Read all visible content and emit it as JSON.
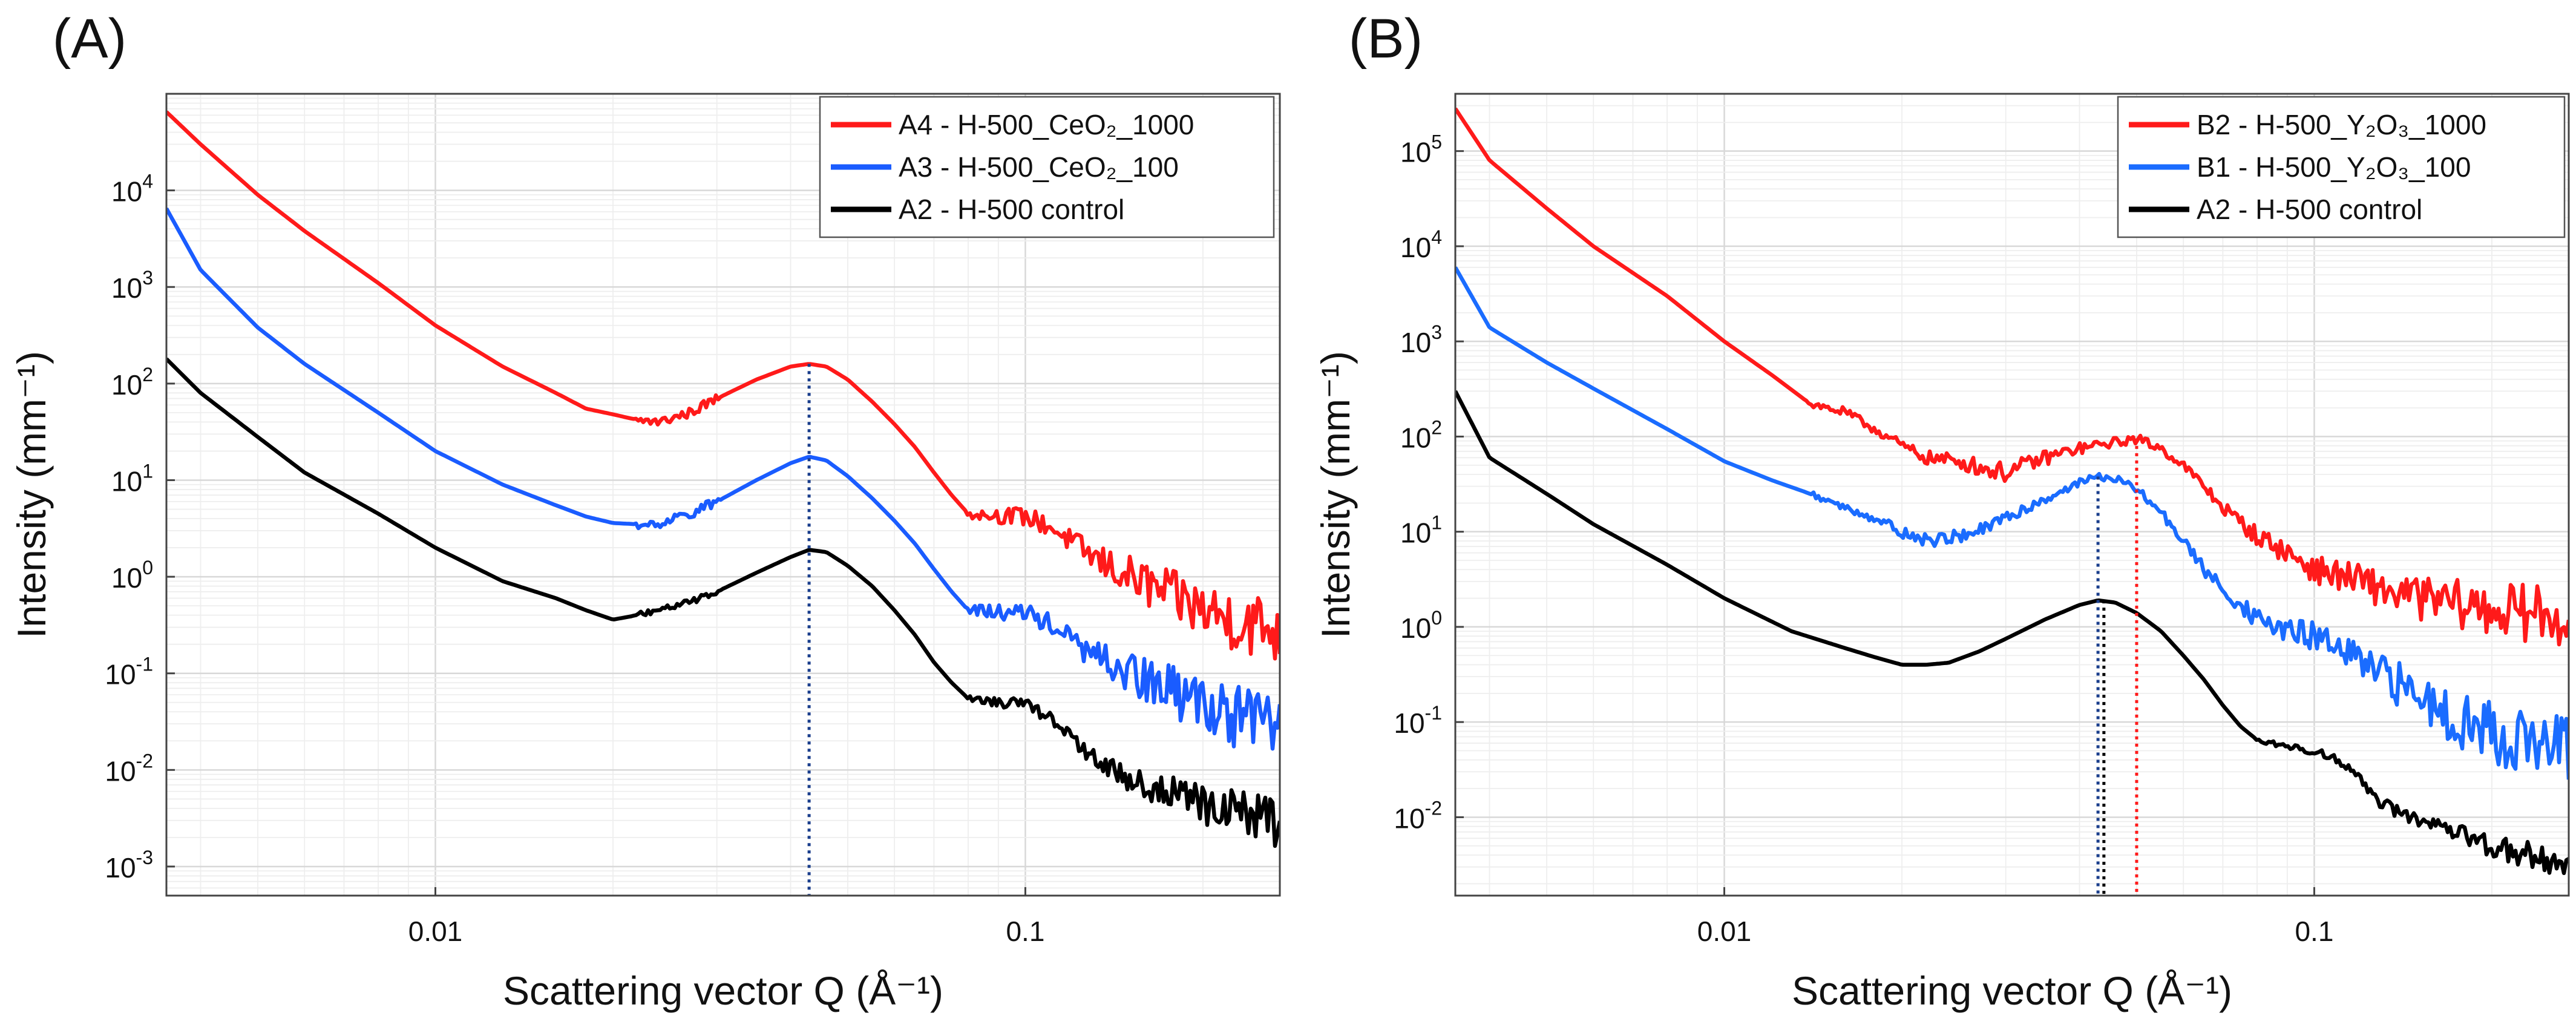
{
  "chart_data": [
    {
      "type": "line",
      "panel_label": "(A)",
      "title": "",
      "xlabel": "Scattering vector Q (Å⁻¹)",
      "ylabel": "Intensity (mm⁻¹)",
      "xscale": "log",
      "yscale": "log",
      "xlim": [
        0.0035,
        0.27
      ],
      "ylim": [
        0.0005,
        100000
      ],
      "xticks": [
        {
          "value": 0.01,
          "label": "0.01"
        },
        {
          "value": 0.1,
          "label": "0.1"
        }
      ],
      "yticks": [
        {
          "value": 0.001,
          "base": "10",
          "exp": "-3"
        },
        {
          "value": 0.01,
          "base": "10",
          "exp": "-2"
        },
        {
          "value": 0.1,
          "base": "10",
          "exp": "-1"
        },
        {
          "value": 1,
          "base": "10",
          "exp": "0"
        },
        {
          "value": 10,
          "base": "10",
          "exp": "1"
        },
        {
          "value": 100,
          "base": "10",
          "exp": "2"
        },
        {
          "value": 1000,
          "base": "10",
          "exp": "3"
        },
        {
          "value": 10000,
          "base": "10",
          "exp": "4"
        }
      ],
      "grid": true,
      "legend_position": "top-right",
      "series": [
        {
          "name": "A4 - H-500_CeO₂_1000",
          "color": "#ff1a1a",
          "x": [
            0.0035,
            0.004,
            0.005,
            0.006,
            0.008,
            0.01,
            0.013,
            0.016,
            0.018,
            0.02,
            0.022,
            0.024,
            0.027,
            0.03,
            0.035,
            0.04,
            0.043,
            0.046,
            0.05,
            0.055,
            0.06,
            0.065,
            0.07,
            0.075,
            0.08,
            0.09,
            0.1,
            0.11,
            0.12,
            0.13,
            0.15,
            0.17,
            0.2,
            0.23,
            0.27
          ],
          "y": [
            65000,
            30000,
            9000,
            3800,
            1100,
            400,
            150,
            80,
            55,
            48,
            42,
            40,
            50,
            70,
            110,
            150,
            160,
            150,
            110,
            65,
            38,
            22,
            12,
            7,
            4.5,
            4.3,
            4.2,
            3.3,
            2.3,
            1.6,
            1.0,
            0.7,
            0.45,
            0.35,
            0.28
          ],
          "noise": [
            0,
            0,
            0,
            0,
            0,
            0,
            0,
            0,
            0,
            0,
            0.05,
            0.05,
            0.05,
            0.05,
            0,
            0,
            0,
            0,
            0,
            0,
            0,
            0,
            0,
            0,
            0.05,
            0.08,
            0.1,
            0.1,
            0.12,
            0.16,
            0.22,
            0.26,
            0.3,
            0.33,
            0.36
          ]
        },
        {
          "name": "A3 - H-500_CeO₂_100",
          "color": "#1a5cff",
          "x": [
            0.0035,
            0.004,
            0.005,
            0.006,
            0.008,
            0.01,
            0.013,
            0.016,
            0.018,
            0.02,
            0.022,
            0.024,
            0.027,
            0.03,
            0.035,
            0.04,
            0.043,
            0.046,
            0.05,
            0.055,
            0.06,
            0.065,
            0.07,
            0.075,
            0.08,
            0.09,
            0.1,
            0.11,
            0.12,
            0.13,
            0.15,
            0.17,
            0.2,
            0.23,
            0.27
          ],
          "y": [
            6500,
            1500,
            380,
            160,
            50,
            20,
            9,
            5.5,
            4.2,
            3.6,
            3.5,
            3.6,
            4.5,
            6,
            10,
            15,
            17.5,
            16,
            11,
            6.5,
            3.8,
            2.2,
            1.2,
            0.7,
            0.45,
            0.43,
            0.42,
            0.33,
            0.22,
            0.15,
            0.1,
            0.07,
            0.05,
            0.035,
            0.028
          ],
          "noise": [
            0,
            0,
            0,
            0,
            0,
            0,
            0,
            0,
            0,
            0,
            0.05,
            0.05,
            0.05,
            0.05,
            0,
            0,
            0,
            0,
            0,
            0,
            0,
            0,
            0,
            0,
            0.05,
            0.08,
            0.1,
            0.1,
            0.12,
            0.16,
            0.22,
            0.26,
            0.3,
            0.33,
            0.36
          ]
        },
        {
          "name": "A2 - H-500 control",
          "color": "#000000",
          "x": [
            0.0035,
            0.004,
            0.005,
            0.006,
            0.008,
            0.01,
            0.013,
            0.016,
            0.018,
            0.02,
            0.022,
            0.024,
            0.027,
            0.03,
            0.035,
            0.04,
            0.043,
            0.046,
            0.05,
            0.055,
            0.06,
            0.065,
            0.07,
            0.075,
            0.08,
            0.09,
            0.1,
            0.11,
            0.12,
            0.13,
            0.15,
            0.17,
            0.2,
            0.23,
            0.27
          ],
          "y": [
            180,
            80,
            28,
            12,
            4.5,
            2.0,
            0.9,
            0.6,
            0.45,
            0.36,
            0.4,
            0.45,
            0.55,
            0.7,
            1.1,
            1.6,
            1.9,
            1.8,
            1.3,
            0.8,
            0.45,
            0.25,
            0.13,
            0.08,
            0.055,
            0.05,
            0.048,
            0.035,
            0.022,
            0.013,
            0.008,
            0.006,
            0.0045,
            0.0035,
            0.003
          ],
          "noise": [
            0,
            0,
            0,
            0,
            0,
            0,
            0,
            0,
            0,
            0,
            0.03,
            0.03,
            0.03,
            0.03,
            0,
            0,
            0,
            0,
            0,
            0,
            0,
            0,
            0,
            0,
            0.03,
            0.05,
            0.06,
            0.06,
            0.08,
            0.1,
            0.14,
            0.18,
            0.22,
            0.25,
            0.28
          ]
        }
      ],
      "reference_lines": [
        {
          "x": 0.043,
          "color": "#1a3e8c",
          "from": 1.9,
          "to": 160,
          "to_axis_bottom": true
        }
      ]
    },
    {
      "type": "line",
      "panel_label": "(B)",
      "title": "",
      "xlabel": "Scattering vector Q (Å⁻¹)",
      "ylabel": "Intensity (mm⁻¹)",
      "xscale": "log",
      "yscale": "log",
      "xlim": [
        0.0035,
        0.27
      ],
      "ylim": [
        0.0015,
        400000
      ],
      "xticks": [
        {
          "value": 0.01,
          "label": "0.01"
        },
        {
          "value": 0.1,
          "label": "0.1"
        }
      ],
      "yticks": [
        {
          "value": 0.01,
          "base": "10",
          "exp": "-2"
        },
        {
          "value": 0.1,
          "base": "10",
          "exp": "-1"
        },
        {
          "value": 1,
          "base": "10",
          "exp": "0"
        },
        {
          "value": 10,
          "base": "10",
          "exp": "1"
        },
        {
          "value": 100,
          "base": "10",
          "exp": "2"
        },
        {
          "value": 1000,
          "base": "10",
          "exp": "3"
        },
        {
          "value": 10000,
          "base": "10",
          "exp": "4"
        },
        {
          "value": 100000,
          "base": "10",
          "exp": "5"
        }
      ],
      "grid": true,
      "legend_position": "top-right",
      "series": [
        {
          "name": "B2 - H-500_Y₂O₃_1000",
          "color": "#ff1a1a",
          "x": [
            0.0035,
            0.004,
            0.005,
            0.006,
            0.008,
            0.01,
            0.012,
            0.014,
            0.016,
            0.018,
            0.02,
            0.022,
            0.025,
            0.028,
            0.03,
            0.035,
            0.04,
            0.045,
            0.05,
            0.055,
            0.06,
            0.065,
            0.07,
            0.08,
            0.09,
            0.1,
            0.11,
            0.12,
            0.13,
            0.15,
            0.17,
            0.2,
            0.23,
            0.27
          ],
          "y": [
            280000,
            80000,
            25000,
            10000,
            3000,
            1000,
            450,
            220,
            180,
            120,
            80,
            60,
            55,
            45,
            42,
            60,
            75,
            85,
            95,
            75,
            50,
            30,
            18,
            9,
            6,
            4,
            3.5,
            3,
            2.5,
            2,
            1.8,
            1.5,
            1.4,
            1.3
          ],
          "noise": [
            0,
            0,
            0,
            0,
            0,
            0,
            0,
            0.04,
            0.05,
            0.05,
            0.06,
            0.07,
            0.08,
            0.1,
            0.1,
            0.08,
            0.06,
            0.05,
            0.05,
            0.05,
            0.05,
            0.06,
            0.07,
            0.1,
            0.12,
            0.14,
            0.16,
            0.18,
            0.2,
            0.22,
            0.25,
            0.28,
            0.3,
            0.32
          ]
        },
        {
          "name": "B1 - H-500_Y₂O₃_100",
          "color": "#1a6cff",
          "x": [
            0.0035,
            0.004,
            0.005,
            0.006,
            0.008,
            0.01,
            0.012,
            0.014,
            0.016,
            0.018,
            0.02,
            0.022,
            0.025,
            0.028,
            0.03,
            0.035,
            0.04,
            0.043,
            0.046,
            0.05,
            0.055,
            0.06,
            0.065,
            0.07,
            0.08,
            0.09,
            0.1,
            0.11,
            0.12,
            0.13,
            0.15,
            0.17,
            0.2,
            0.23,
            0.27
          ],
          "y": [
            6000,
            1400,
            600,
            320,
            120,
            55,
            35,
            25,
            18,
            14,
            10,
            8,
            9,
            11,
            14,
            22,
            33,
            38,
            36,
            28,
            16,
            8,
            4,
            2.5,
            1.2,
            0.9,
            0.8,
            0.6,
            0.4,
            0.3,
            0.2,
            0.12,
            0.08,
            0.06,
            0.05
          ],
          "noise": [
            0,
            0,
            0,
            0,
            0,
            0,
            0,
            0.03,
            0.04,
            0.05,
            0.06,
            0.07,
            0.07,
            0.06,
            0.06,
            0.05,
            0.04,
            0.04,
            0.04,
            0.04,
            0.05,
            0.06,
            0.07,
            0.08,
            0.1,
            0.12,
            0.15,
            0.18,
            0.2,
            0.22,
            0.26,
            0.3,
            0.34,
            0.36,
            0.38
          ]
        },
        {
          "name": "A2 - H-500 control",
          "color": "#000000",
          "x": [
            0.0035,
            0.004,
            0.005,
            0.006,
            0.008,
            0.01,
            0.013,
            0.016,
            0.018,
            0.02,
            0.022,
            0.024,
            0.027,
            0.03,
            0.035,
            0.04,
            0.043,
            0.046,
            0.05,
            0.055,
            0.06,
            0.065,
            0.07,
            0.075,
            0.08,
            0.09,
            0.1,
            0.11,
            0.12,
            0.13,
            0.15,
            0.17,
            0.2,
            0.23,
            0.27
          ],
          "y": [
            300,
            60,
            25,
            12,
            4.5,
            2.0,
            0.9,
            0.6,
            0.48,
            0.4,
            0.4,
            0.42,
            0.55,
            0.75,
            1.2,
            1.7,
            1.9,
            1.8,
            1.4,
            0.9,
            0.5,
            0.28,
            0.15,
            0.09,
            0.065,
            0.055,
            0.05,
            0.04,
            0.025,
            0.014,
            0.009,
            0.007,
            0.005,
            0.004,
            0.003
          ],
          "noise": [
            0,
            0,
            0,
            0,
            0,
            0,
            0,
            0,
            0,
            0,
            0,
            0,
            0,
            0,
            0,
            0,
            0,
            0,
            0,
            0,
            0,
            0,
            0,
            0,
            0.02,
            0.03,
            0.04,
            0.04,
            0.05,
            0.06,
            0.08,
            0.1,
            0.12,
            0.14,
            0.16
          ]
        }
      ],
      "reference_lines": [
        {
          "x": 0.043,
          "color": "#1a3e8c",
          "from": 1.9,
          "to": 38,
          "to_axis_bottom": true
        },
        {
          "x": 0.044,
          "color": "#000000",
          "from": 1.9,
          "to": 1.9,
          "to_axis_bottom": true
        },
        {
          "x": 0.05,
          "color": "#ff1a1a",
          "from": 95,
          "to": 95,
          "to_axis_bottom": true
        }
      ]
    }
  ]
}
